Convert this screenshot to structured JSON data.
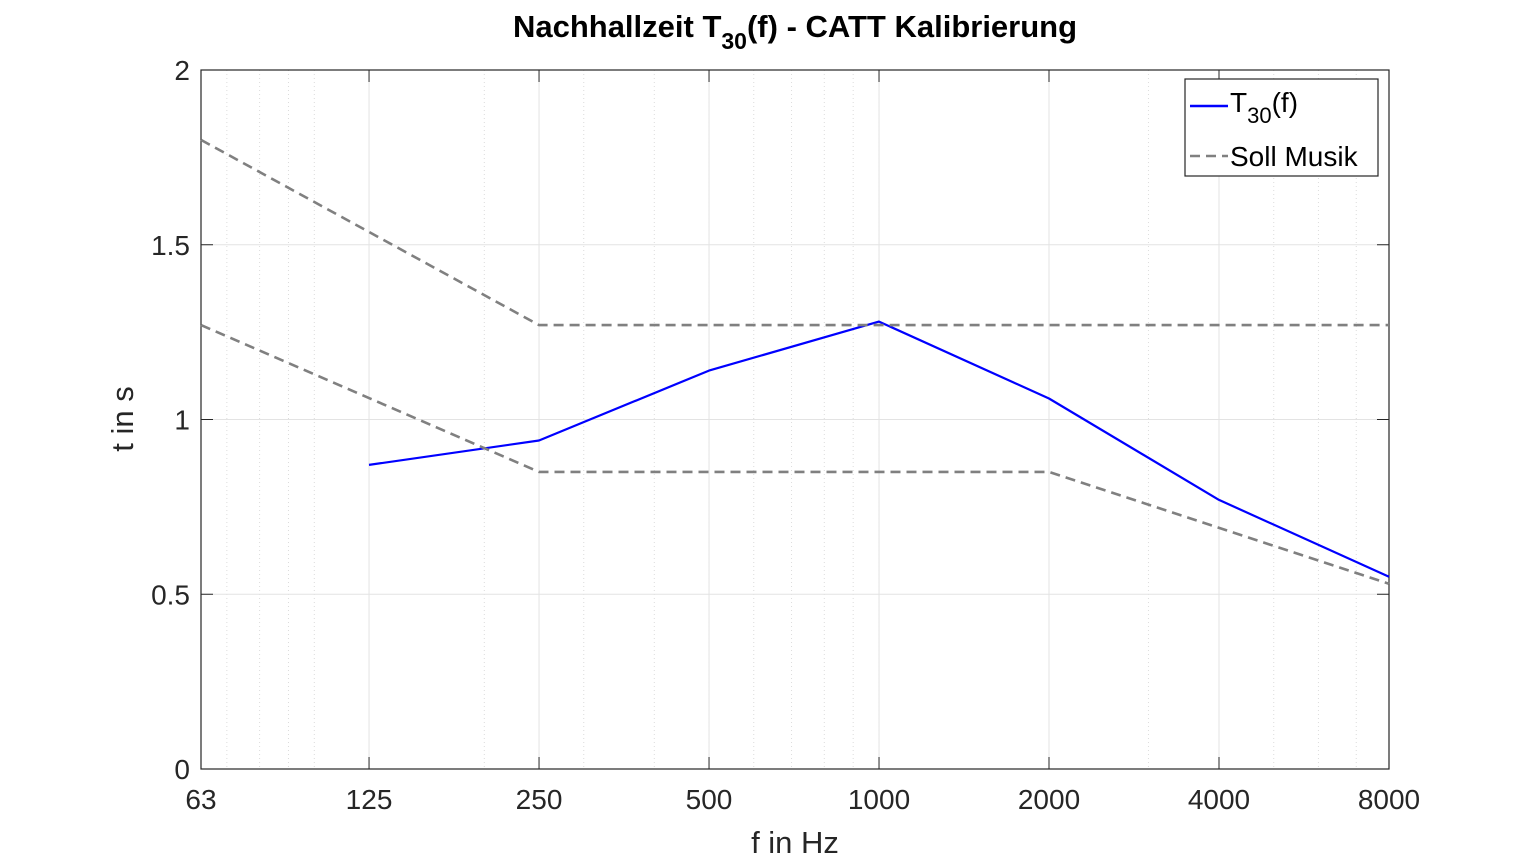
{
  "chart_data": {
    "type": "line",
    "title": "Nachhallzeit T",
    "title_sub": "30",
    "title_suffix": "(f) - CATT Kalibrierung",
    "xlabel": "f in Hz",
    "ylabel": "t in s",
    "x_scale": "log",
    "xlim": [
      63,
      8000
    ],
    "ylim": [
      0,
      2
    ],
    "xticks": [
      63,
      125,
      250,
      500,
      1000,
      2000,
      4000,
      8000
    ],
    "xtick_labels": [
      "63",
      "125",
      "250",
      "500",
      "1000",
      "2000",
      "4000",
      "8000"
    ],
    "yticks": [
      0,
      0.5,
      1,
      1.5,
      2
    ],
    "ytick_labels": [
      "0",
      "0.5",
      "1",
      "1.5",
      "2"
    ],
    "grid": true,
    "minor_grid_x": true,
    "legend_position": "top-right",
    "series": [
      {
        "name": "T(f)",
        "legend_main": "T",
        "legend_sub": "30",
        "legend_suffix": "(f)",
        "style": "solid",
        "color": "#0000FF",
        "x": [
          125,
          250,
          500,
          1000,
          2000,
          4000,
          8000
        ],
        "y": [
          0.87,
          0.94,
          1.14,
          1.28,
          1.06,
          0.77,
          0.55
        ]
      },
      {
        "name": "Soll Musik",
        "legend_main": "Soll Musik",
        "style": "dashed",
        "color": "#808080",
        "x": [
          63,
          250,
          8000
        ],
        "y": [
          1.8,
          1.27,
          1.27
        ]
      },
      {
        "name": "Soll Musik",
        "style": "dashed",
        "color": "#808080",
        "legend_hidden": true,
        "x": [
          63,
          250,
          2000,
          8000
        ],
        "y": [
          1.27,
          0.85,
          0.85,
          0.53
        ]
      }
    ]
  }
}
